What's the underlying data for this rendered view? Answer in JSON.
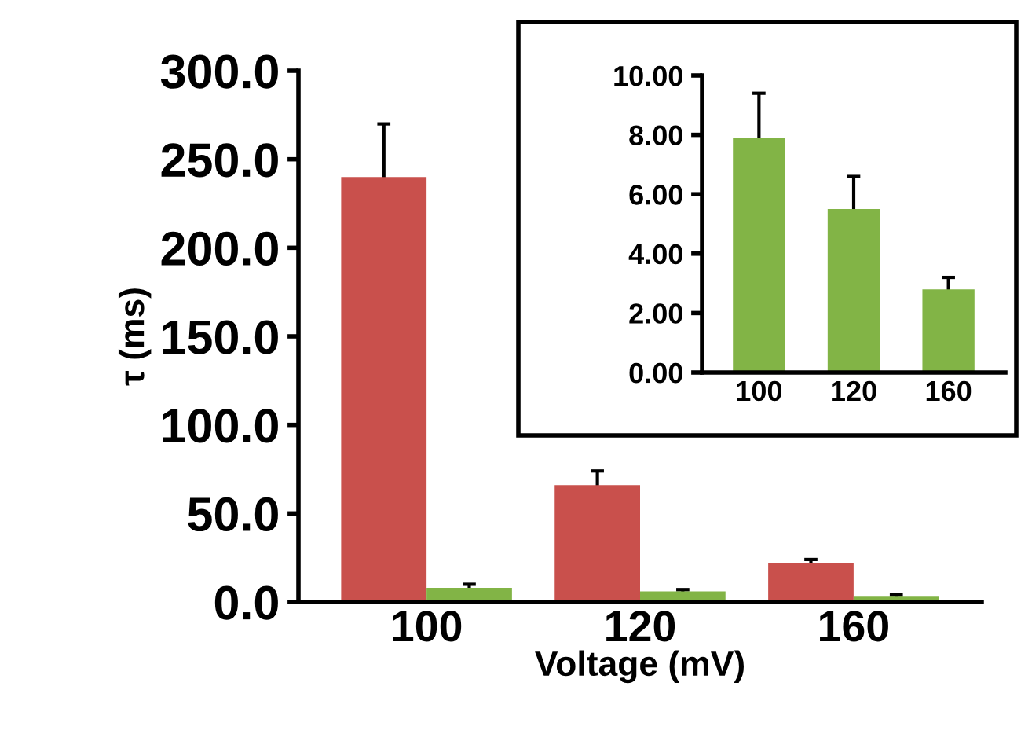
{
  "chart_data": [
    {
      "type": "bar",
      "xlabel": "Voltage (mV)",
      "ylabel": "τ (ms)",
      "categories": [
        "100",
        "120",
        "160"
      ],
      "series": [
        {
          "color": "#c9504c",
          "values": [
            240,
            66,
            22
          ],
          "errors": [
            30,
            8,
            2
          ]
        },
        {
          "color": "#82b446",
          "values": [
            8,
            6,
            3
          ],
          "errors": [
            2,
            1,
            1
          ]
        }
      ],
      "ylim": [
        0,
        300
      ],
      "yticks": [
        {
          "value": 0,
          "label": "0.0"
        },
        {
          "value": 50,
          "label": "50.0"
        },
        {
          "value": 100,
          "label": "100.0"
        },
        {
          "value": 150,
          "label": "150.0"
        },
        {
          "value": 200,
          "label": "200.0"
        },
        {
          "value": 250,
          "label": "250.0"
        },
        {
          "value": 300,
          "label": "300.0"
        }
      ],
      "grid": false,
      "legend": false
    },
    {
      "type": "bar",
      "categories": [
        "100",
        "120",
        "160"
      ],
      "series": [
        {
          "color": "#82b446",
          "values": [
            7.9,
            5.5,
            2.8
          ],
          "errors": [
            1.5,
            1.1,
            0.4
          ]
        }
      ],
      "ylim": [
        0,
        10
      ],
      "yticks": [
        {
          "value": 0,
          "label": "0.00"
        },
        {
          "value": 2,
          "label": "2.00"
        },
        {
          "value": 4,
          "label": "4.00"
        },
        {
          "value": 6,
          "label": "6.00"
        },
        {
          "value": 8,
          "label": "8.00"
        },
        {
          "value": 10,
          "label": "10.00"
        }
      ],
      "grid": false,
      "legend": false
    }
  ]
}
